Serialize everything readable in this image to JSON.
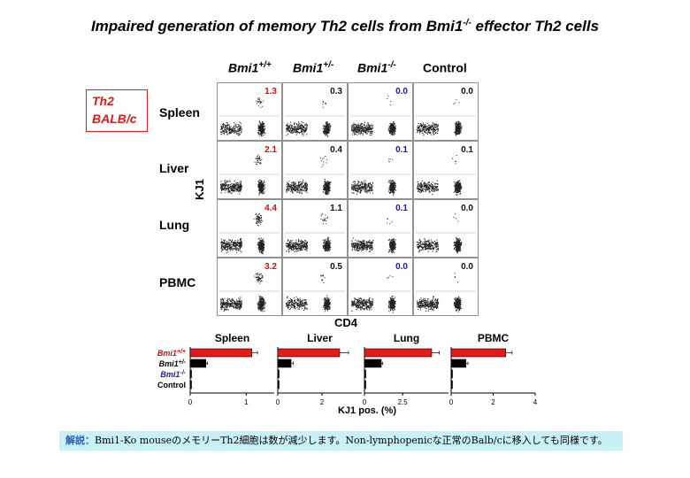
{
  "title": {
    "pre": "Impaired generation of memory Th2 cells from Bmi1",
    "sup": "-/-",
    "post": " effector Th2 cells"
  },
  "box": {
    "line1": "Th2",
    "line2": "BALB/c"
  },
  "columns": [
    {
      "base": "Bmi1",
      "sup": "+/+"
    },
    {
      "base": "Bmi1",
      "sup": "+/-"
    },
    {
      "base": "Bmi1",
      "sup": "-/-"
    },
    {
      "base": "Control",
      "sup": ""
    }
  ],
  "rows": [
    "Spleen",
    "Liver",
    "Lung",
    "PBMC"
  ],
  "facs": {
    "y_label": "KJ1",
    "x_label": "CD4",
    "percentages": [
      [
        "1.3",
        "0.3",
        "0.0",
        "0.0"
      ],
      [
        "2.1",
        "0.4",
        "0.1",
        "0.1"
      ],
      [
        "4.4",
        "1.1",
        "0.1",
        "0.0"
      ],
      [
        "3.2",
        "0.5",
        "0.0",
        "0.0"
      ]
    ],
    "value_colors": [
      "#cc1111",
      "#111111",
      "#1a1a99",
      "#111111"
    ]
  },
  "chart_data": {
    "type": "bar",
    "orientation": "horizontal",
    "xlabel": "KJ1 pos. (%)",
    "categories": [
      "Bmi1+/+",
      "Bmi1+/-",
      "Bmi1-/-",
      "Control"
    ],
    "category_labels": [
      {
        "base": "Bmi1",
        "sup": "+/+",
        "color": "#cc1111"
      },
      {
        "base": "Bmi1",
        "sup": "+/-",
        "color": "#000000"
      },
      {
        "base": "Bmi1",
        "sup": "-/-",
        "color": "#1a1a99"
      },
      {
        "base": "Control",
        "sup": "",
        "color": "#000000"
      }
    ],
    "bar_colors": [
      "#e31b1b",
      "#000000",
      "#000000",
      "#000000"
    ],
    "panels": [
      {
        "title": "Spleen",
        "xlim": [
          0,
          1.5
        ],
        "ticks": [
          "0",
          "1"
        ],
        "tick_values": [
          0,
          1
        ],
        "values": [
          1.1,
          0.28,
          0.02,
          0.02
        ],
        "errors": [
          0.1,
          0.03,
          0,
          0
        ]
      },
      {
        "title": "Liver",
        "xlim": [
          0,
          3.8
        ],
        "ticks": [
          "0",
          "2"
        ],
        "tick_values": [
          0,
          2
        ],
        "values": [
          2.8,
          0.6,
          0.04,
          0.04
        ],
        "errors": [
          0.4,
          0.1,
          0,
          0
        ]
      },
      {
        "title": "Lung",
        "xlim": [
          0,
          5.5
        ],
        "ticks": [
          "0",
          "2.5"
        ],
        "tick_values": [
          0,
          2.5
        ],
        "values": [
          4.4,
          1.1,
          0.06,
          0.05
        ],
        "errors": [
          0.5,
          0.1,
          0,
          0
        ]
      },
      {
        "title": "PBMC",
        "xlim": [
          0,
          4
        ],
        "ticks": [
          "0",
          "2",
          "4"
        ],
        "tick_values": [
          0,
          2,
          4
        ],
        "values": [
          2.6,
          0.7,
          0.03,
          0.03
        ],
        "errors": [
          0.3,
          0.1,
          0,
          0
        ]
      }
    ]
  },
  "note": {
    "label": "解説：",
    "text": "Bmi1-Ko mouseのメモリーTh2細胞は数が減少します。Non-lymphopenicな正常のBalb/cに移入しても同様です。"
  }
}
